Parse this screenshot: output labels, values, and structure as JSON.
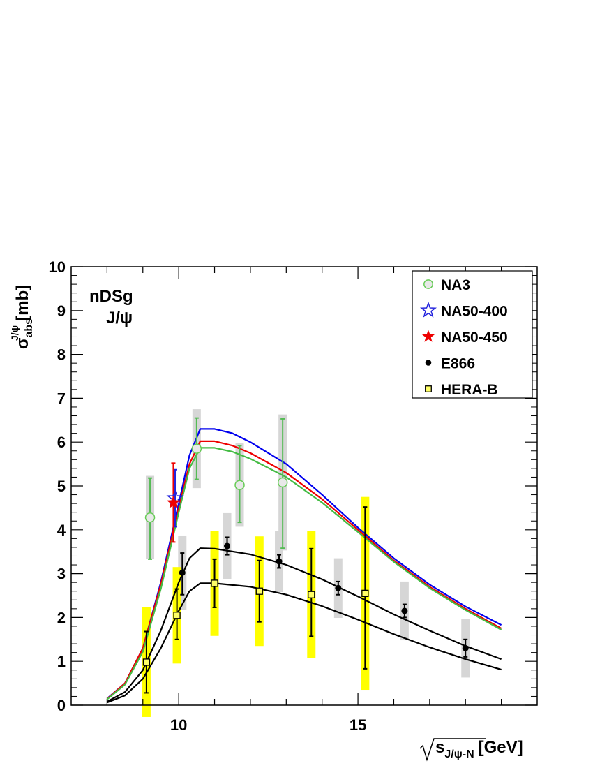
{
  "chart_data": {
    "type": "scatter",
    "title": "",
    "annotation_line1": "nDSg",
    "annotation_line2": "J/ψ",
    "xlabel": "√s_J/ψ-N [GeV]",
    "xlabel_parts": {
      "base": "s",
      "sub": "J/ψ-N",
      "unit": "[GeV]"
    },
    "ylabel": "σ_abs^J/ψ [mb]",
    "ylabel_parts": {
      "base": "σ",
      "sub": "abs",
      "sup": "J/ψ",
      "unit": "[mb]"
    },
    "xlim": [
      7.0,
      20.0
    ],
    "ylim": [
      0,
      10
    ],
    "xticks": [
      10,
      15
    ],
    "xtick_labels": [
      "10",
      "15"
    ],
    "yticks": [
      0,
      1,
      2,
      3,
      4,
      5,
      6,
      7,
      8,
      9,
      10
    ],
    "ytick_labels": [
      "0",
      "1",
      "2",
      "3",
      "4",
      "5",
      "6",
      "7",
      "8",
      "9",
      "10"
    ],
    "legend_position": "top-right",
    "legend": [
      {
        "label": "NA3",
        "marker": "open-circle",
        "color": "#66cc55"
      },
      {
        "label": "NA50-400",
        "marker": "open-star",
        "color": "#2222dd"
      },
      {
        "label": "NA50-450",
        "marker": "filled-star",
        "color": "#ee0000"
      },
      {
        "label": "E866",
        "marker": "filled-circle",
        "color": "#000000"
      },
      {
        "label": "HERA-B",
        "marker": "open-square",
        "color": "#000000"
      }
    ],
    "series": [
      {
        "name": "NA3",
        "marker": "open-circle",
        "color": "#66cc55",
        "syst_color": "#d6d6d6",
        "points": [
          {
            "x": 9.2,
            "y": 4.28,
            "err_lo": 0.95,
            "err_hi": 0.9,
            "syst": 0.95
          },
          {
            "x": 10.5,
            "y": 5.85,
            "err_lo": 0.7,
            "err_hi": 0.7,
            "syst": 0.9
          },
          {
            "x": 11.7,
            "y": 5.02,
            "err_lo": 0.85,
            "err_hi": 0.9,
            "syst": 0.95
          },
          {
            "x": 12.9,
            "y": 5.08,
            "err_lo": 1.5,
            "err_hi": 1.45,
            "syst": 1.55
          }
        ]
      },
      {
        "name": "NA50-400",
        "marker": "open-star",
        "color": "#2222dd",
        "points": [
          {
            "x": 9.9,
            "y": 4.72,
            "err_lo": 0.65,
            "err_hi": 0.65
          }
        ]
      },
      {
        "name": "NA50-450",
        "marker": "filled-star",
        "color": "#ee0000",
        "points": [
          {
            "x": 9.85,
            "y": 4.62,
            "err_lo": 0.9,
            "err_hi": 0.9
          }
        ]
      },
      {
        "name": "E866",
        "marker": "filled-circle",
        "color": "#000000",
        "syst_color": "#d6d6d6",
        "points": [
          {
            "x": 10.1,
            "y": 3.02,
            "err_lo": 0.5,
            "err_hi": 0.45,
            "syst": 0.85
          },
          {
            "x": 11.35,
            "y": 3.63,
            "err_lo": 0.2,
            "err_hi": 0.2,
            "syst": 0.75
          },
          {
            "x": 12.8,
            "y": 3.28,
            "err_lo": 0.15,
            "err_hi": 0.15,
            "syst": 0.7
          },
          {
            "x": 14.45,
            "y": 2.67,
            "err_lo": 0.15,
            "err_hi": 0.15,
            "syst": 0.68
          },
          {
            "x": 16.3,
            "y": 2.15,
            "err_lo": 0.15,
            "err_hi": 0.15,
            "syst": 0.67
          },
          {
            "x": 18.0,
            "y": 1.3,
            "err_lo": 0.2,
            "err_hi": 0.2,
            "syst": 0.67
          }
        ]
      },
      {
        "name": "HERA-B",
        "marker": "open-square",
        "color": "#000000",
        "syst_color": "#ffff00",
        "points": [
          {
            "x": 9.1,
            "y": 0.98,
            "err_lo": 0.7,
            "err_hi": 0.7,
            "syst": 1.25
          },
          {
            "x": 9.95,
            "y": 2.05,
            "err_lo": 0.55,
            "err_hi": 0.6,
            "syst": 1.1
          },
          {
            "x": 11.0,
            "y": 2.78,
            "err_lo": 0.55,
            "err_hi": 0.55,
            "syst": 1.2
          },
          {
            "x": 12.25,
            "y": 2.6,
            "err_lo": 0.7,
            "err_hi": 0.7,
            "syst": 1.25
          },
          {
            "x": 13.7,
            "y": 2.52,
            "err_lo": 0.95,
            "err_hi": 1.05,
            "syst": 1.45
          },
          {
            "x": 15.2,
            "y": 2.55,
            "err_lo": 1.72,
            "err_hi": 1.97,
            "syst": 2.2
          }
        ]
      }
    ],
    "curves": [
      {
        "name": "NA50-400 fit",
        "color": "#0000ee",
        "x": [
          8,
          8.5,
          9,
          9.5,
          10,
          10.3,
          10.6,
          11,
          11.5,
          12,
          13,
          14,
          15,
          16,
          17,
          18,
          19
        ],
        "y": [
          0.15,
          0.5,
          1.3,
          2.8,
          4.6,
          5.7,
          6.3,
          6.3,
          6.2,
          6.0,
          5.5,
          4.8,
          4.05,
          3.35,
          2.75,
          2.25,
          1.83
        ]
      },
      {
        "name": "NA50-450 fit",
        "color": "#ee0000",
        "x": [
          8,
          8.5,
          9,
          9.5,
          10,
          10.3,
          10.6,
          11,
          11.5,
          12,
          13,
          14,
          15,
          16,
          17,
          18,
          19
        ],
        "y": [
          0.14,
          0.5,
          1.3,
          2.75,
          4.5,
          5.5,
          6.02,
          6.02,
          5.92,
          5.75,
          5.3,
          4.7,
          4.0,
          3.3,
          2.7,
          2.2,
          1.75
        ]
      },
      {
        "name": "NA3 fit",
        "color": "#44bb44",
        "x": [
          8,
          8.5,
          9,
          9.5,
          10,
          10.3,
          10.6,
          11,
          11.5,
          12,
          13,
          14,
          15,
          16,
          17,
          18,
          19
        ],
        "y": [
          0.13,
          0.47,
          1.22,
          2.65,
          4.4,
          5.4,
          5.87,
          5.87,
          5.78,
          5.62,
          5.2,
          4.62,
          3.95,
          3.27,
          2.67,
          2.17,
          1.72
        ]
      },
      {
        "name": "E866 fit",
        "color": "#000000",
        "x": [
          8,
          8.5,
          9,
          9.5,
          10,
          10.3,
          10.6,
          11,
          12,
          13,
          14,
          15,
          16,
          17,
          18,
          19
        ],
        "y": [
          0.08,
          0.3,
          0.8,
          1.7,
          2.8,
          3.35,
          3.58,
          3.57,
          3.44,
          3.2,
          2.87,
          2.48,
          2.07,
          1.7,
          1.35,
          1.05
        ]
      },
      {
        "name": "HERA-B fit",
        "color": "#000000",
        "x": [
          8,
          8.5,
          9,
          9.5,
          10,
          10.3,
          10.6,
          11,
          12,
          13,
          14,
          15,
          16,
          17,
          18,
          19
        ],
        "y": [
          0.06,
          0.22,
          0.6,
          1.3,
          2.15,
          2.6,
          2.78,
          2.78,
          2.7,
          2.52,
          2.26,
          1.95,
          1.62,
          1.32,
          1.05,
          0.81
        ]
      }
    ]
  }
}
